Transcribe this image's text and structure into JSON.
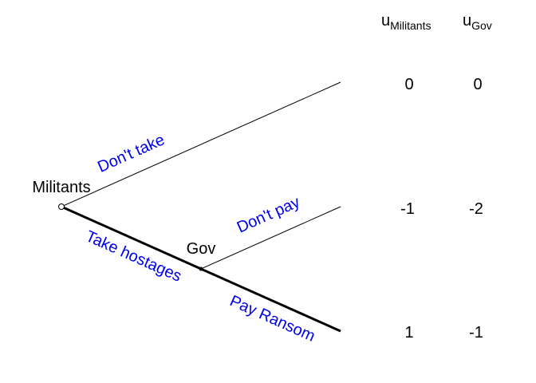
{
  "headers": {
    "militants": {
      "base": "u",
      "sub": "Militants"
    },
    "gov": {
      "base": "u",
      "sub": "Gov"
    }
  },
  "nodes": {
    "root": {
      "label": "Militants"
    },
    "gov": {
      "label": "Gov"
    }
  },
  "actions": {
    "dont_take": "Don't take",
    "take_hostages": "Take hostages",
    "dont_pay": "Don't pay",
    "pay_ransom": "Pay Ransom"
  },
  "payoffs": [
    {
      "militants": "0",
      "gov": "0"
    },
    {
      "militants": "-1",
      "gov": "-2"
    },
    {
      "militants": "1",
      "gov": "-1"
    }
  ],
  "colors": {
    "action_text": "#0000ee",
    "line": "#000000"
  }
}
